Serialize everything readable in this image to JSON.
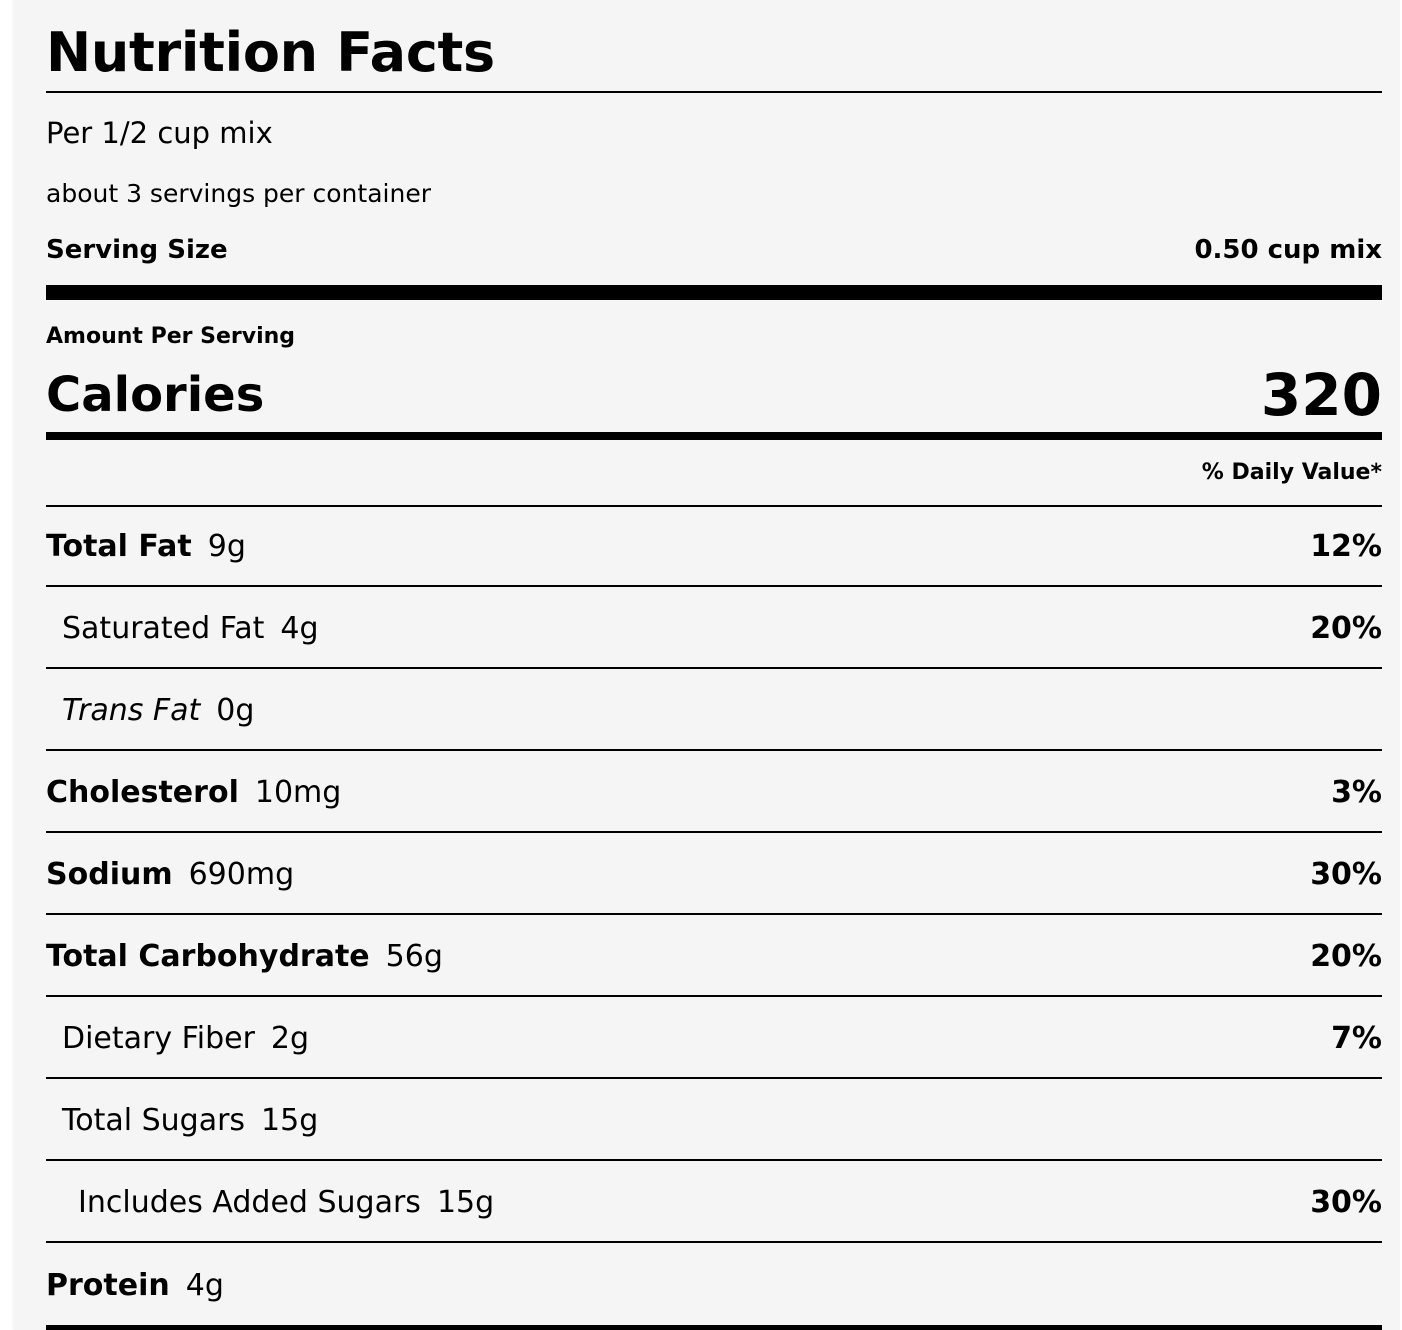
{
  "label": {
    "title": "Nutrition Facts",
    "per_serving": "Per 1/2 cup mix",
    "servings_per_container": "about 3 servings per container",
    "serving_size_label": "Serving Size",
    "serving_size_value": "0.50 cup mix",
    "amount_per_serving": "Amount Per Serving",
    "calories_label": "Calories",
    "calories_value": "320",
    "daily_value_header": "% Daily Value*",
    "nutrients": [
      {
        "name": "Total Fat",
        "amount": "9g",
        "dv": "12%"
      },
      {
        "name": "Saturated Fat",
        "amount": "4g",
        "dv": "20%"
      },
      {
        "name": "Trans Fat",
        "amount": "0g",
        "dv": ""
      },
      {
        "name": "Cholesterol",
        "amount": "10mg",
        "dv": "3%"
      },
      {
        "name": "Sodium",
        "amount": "690mg",
        "dv": "30%"
      },
      {
        "name": "Total Carbohydrate",
        "amount": "56g",
        "dv": "20%"
      },
      {
        "name": "Dietary Fiber",
        "amount": "2g",
        "dv": "7%"
      },
      {
        "name": "Total Sugars",
        "amount": "15g",
        "dv": ""
      },
      {
        "name": "Includes Added Sugars",
        "amount": "15g",
        "dv": "30%"
      },
      {
        "name": "Protein",
        "amount": "4g",
        "dv": ""
      }
    ]
  }
}
